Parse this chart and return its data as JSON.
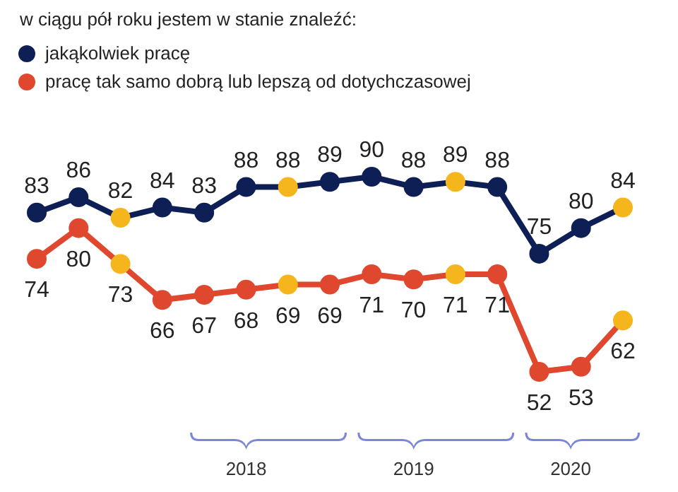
{
  "chart_data": {
    "type": "line",
    "title": "w ciągu pół roku jestem w stanie znaleźć:",
    "categories": [
      null,
      null,
      null,
      null,
      null,
      null,
      null,
      null,
      null,
      null,
      null,
      null,
      null,
      null,
      null
    ],
    "series": [
      {
        "name": "jakąkolwiek pracę",
        "color": "#0d1f55",
        "colors": [
          "#0d1f55",
          "#0d1f55",
          "#f5b51c",
          "#0d1f55",
          "#0d1f55",
          "#0d1f55",
          "#f5b51c",
          "#0d1f55",
          "#0d1f55",
          "#0d1f55",
          "#f5b51c",
          "#0d1f55",
          "#0d1f55",
          "#0d1f55",
          "#f5b51c"
        ],
        "values": [
          83,
          86,
          82,
          84,
          83,
          88,
          88,
          89,
          90,
          88,
          89,
          88,
          75,
          80,
          84
        ]
      },
      {
        "name": "pracę tak samo dobrą lub lepszą od dotychczasowej",
        "color": "#e0472f",
        "colors": [
          "#e0472f",
          "#e0472f",
          "#f5b51c",
          "#e0472f",
          "#e0472f",
          "#e0472f",
          "#f5b51c",
          "#e0472f",
          "#e0472f",
          "#e0472f",
          "#f5b51c",
          "#e0472f",
          "#e0472f",
          "#e0472f",
          "#f5b51c"
        ],
        "values": [
          74,
          80,
          73,
          66,
          67,
          68,
          69,
          69,
          71,
          70,
          71,
          71,
          52,
          53,
          62
        ]
      }
    ],
    "data_labels": true,
    "marker": "circle",
    "legend": "top left",
    "annotations": [
      "2018",
      "2019",
      "2020"
    ]
  }
}
